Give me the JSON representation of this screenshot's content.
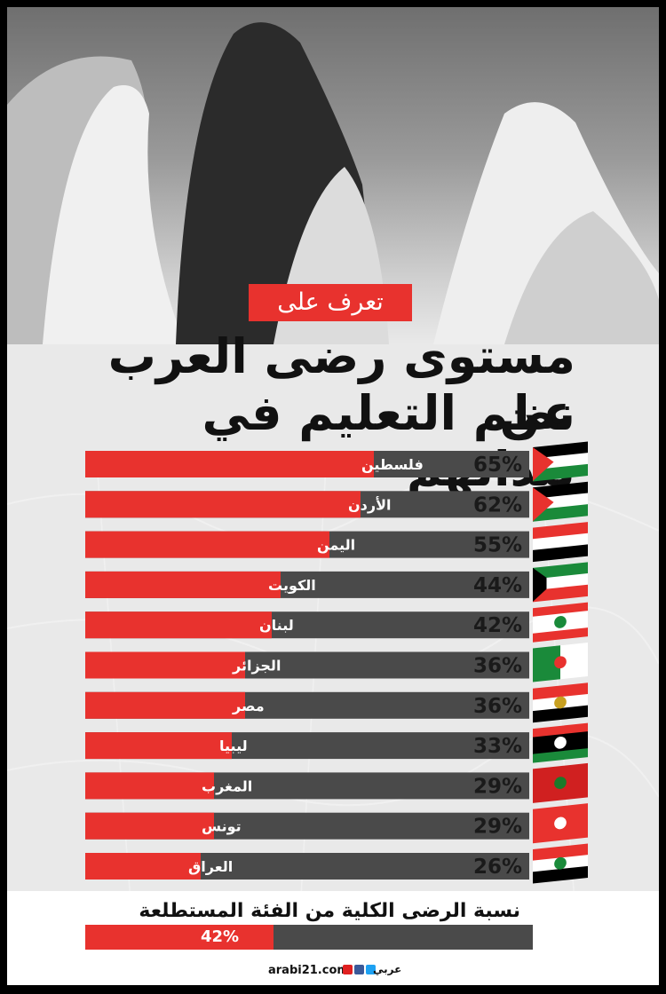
{
  "header": {
    "tag": "تعرف على",
    "title_line1": "مستوى رضى العرب عن",
    "title_line2": "نظم التعليم في بلدانهم"
  },
  "colors": {
    "accent": "#e8322e",
    "bar_bg": "#4a4a4a",
    "background": "#e9e9e9"
  },
  "chart_data": {
    "type": "bar",
    "orientation": "horizontal",
    "title": "مستوى رضى العرب عن نظم التعليم في بلدانهم",
    "categories": [
      "فلسطين",
      "الأردن",
      "اليمن",
      "الكويت",
      "لبنان",
      "الجزائر",
      "مصر",
      "ليبيا",
      "المغرب",
      "تونس",
      "العراق"
    ],
    "values": [
      65,
      62,
      55,
      44,
      42,
      36,
      36,
      33,
      29,
      29,
      26
    ],
    "value_labels": [
      "65%",
      "62%",
      "55%",
      "44%",
      "42%",
      "36%",
      "36%",
      "33%",
      "29%",
      "29%",
      "26%"
    ],
    "flags": [
      "palestine-flag-icon",
      "jordan-flag-icon",
      "yemen-flag-icon",
      "kuwait-flag-icon",
      "lebanon-flag-icon",
      "algeria-flag-icon",
      "egypt-flag-icon",
      "libya-flag-icon",
      "morocco-flag-icon",
      "tunisia-flag-icon",
      "iraq-flag-icon"
    ],
    "xlim": [
      0,
      100
    ],
    "grid": false
  },
  "overall": {
    "label": "نسبة الرضى الكلية من الفئة المستطلعة",
    "value": 42,
    "value_label": "42%"
  },
  "footer": {
    "site": "arabi21.com",
    "brand": "عربي",
    "icons": [
      "youtube-icon",
      "facebook-icon",
      "twitter-icon"
    ]
  }
}
